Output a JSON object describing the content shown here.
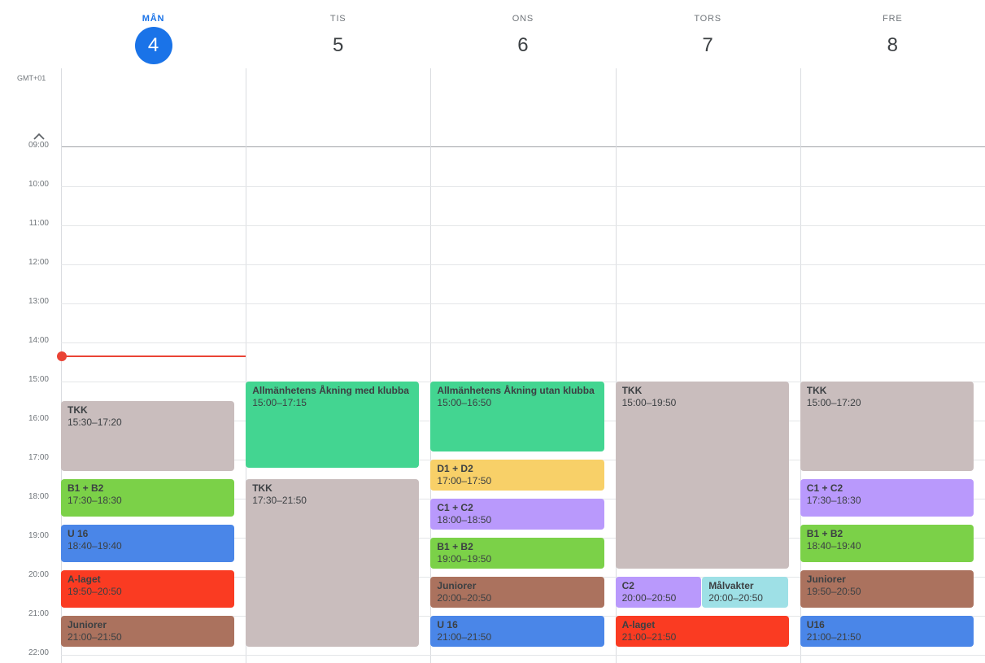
{
  "timezone": "GMT+01",
  "days": [
    {
      "dow": "MÅN",
      "num": "4",
      "today": true
    },
    {
      "dow": "TIS",
      "num": "5",
      "today": false
    },
    {
      "dow": "ONS",
      "num": "6",
      "today": false
    },
    {
      "dow": "TORS",
      "num": "7",
      "today": false
    },
    {
      "dow": "FRE",
      "num": "8",
      "today": false
    }
  ],
  "hours": [
    "09:00",
    "10:00",
    "11:00",
    "12:00",
    "13:00",
    "14:00",
    "15:00",
    "16:00",
    "17:00",
    "18:00",
    "19:00",
    "20:00",
    "21:00",
    "22:00"
  ],
  "current_time": "14:21",
  "colors": {
    "today": "#1a73e8",
    "now_line": "#ea4335",
    "tkk": "#c9bdbd",
    "green_teal": "#43d591",
    "lime": "#7bd148",
    "blue": "#4a86e8",
    "red": "#fa3b22",
    "brown": "#ab725e",
    "yellow": "#f8d068",
    "purple": "#b999fc",
    "cyan": "#9ee0e6"
  },
  "events": [
    {
      "day": 0,
      "title": "TKK",
      "time": "15:30–17:20",
      "start": "15:30",
      "end": "17:20",
      "color": "#c9bdbd"
    },
    {
      "day": 0,
      "title": "B1 + B2",
      "time": "17:30–18:30",
      "start": "17:30",
      "end": "18:30",
      "color": "#7bd148"
    },
    {
      "day": 0,
      "title": "U 16",
      "time": "18:40–19:40",
      "start": "18:40",
      "end": "19:40",
      "color": "#4a86e8"
    },
    {
      "day": 0,
      "title": "A-laget",
      "time": "19:50–20:50",
      "start": "19:50",
      "end": "20:50",
      "color": "#fa3b22"
    },
    {
      "day": 0,
      "title": "Juniorer",
      "time": "21:00–21:50",
      "start": "21:00",
      "end": "21:50",
      "color": "#ab725e"
    },
    {
      "day": 1,
      "title": "Allmänhetens Åkning med klubba",
      "time": "15:00–17:15",
      "start": "15:00",
      "end": "17:15",
      "color": "#43d591"
    },
    {
      "day": 1,
      "title": "TKK",
      "time": "17:30–21:50",
      "start": "17:30",
      "end": "21:50",
      "color": "#c9bdbd"
    },
    {
      "day": 2,
      "title": "Allmänhetens Åkning utan klubba",
      "time": "15:00–16:50",
      "start": "15:00",
      "end": "16:50",
      "color": "#43d591"
    },
    {
      "day": 2,
      "title": "D1 + D2",
      "time": "17:00–17:50",
      "start": "17:00",
      "end": "17:50",
      "color": "#f8d068"
    },
    {
      "day": 2,
      "title": "C1 + C2",
      "time": "18:00–18:50",
      "start": "18:00",
      "end": "18:50",
      "color": "#b999fc"
    },
    {
      "day": 2,
      "title": "B1 + B2",
      "time": "19:00–19:50",
      "start": "19:00",
      "end": "19:50",
      "color": "#7bd148"
    },
    {
      "day": 2,
      "title": "Juniorer",
      "time": "20:00–20:50",
      "start": "20:00",
      "end": "20:50",
      "color": "#ab725e"
    },
    {
      "day": 2,
      "title": "U 16",
      "time": "21:00–21:50",
      "start": "21:00",
      "end": "21:50",
      "color": "#4a86e8"
    },
    {
      "day": 3,
      "title": "TKK",
      "time": "15:00–19:50",
      "start": "15:00",
      "end": "19:50",
      "color": "#c9bdbd"
    },
    {
      "day": 3,
      "title": "C2",
      "time": "20:00–20:50",
      "start": "20:00",
      "end": "20:50",
      "color": "#b999fc",
      "lane": 0,
      "lanes": 2
    },
    {
      "day": 3,
      "title": "Målvakter",
      "time": "20:00–20:50",
      "start": "20:00",
      "end": "20:50",
      "color": "#9ee0e6",
      "lane": 1,
      "lanes": 2
    },
    {
      "day": 3,
      "title": "A-laget",
      "time": "21:00–21:50",
      "start": "21:00",
      "end": "21:50",
      "color": "#fa3b22"
    },
    {
      "day": 4,
      "title": "TKK",
      "time": "15:00–17:20",
      "start": "15:00",
      "end": "17:20",
      "color": "#c9bdbd"
    },
    {
      "day": 4,
      "title": "C1 + C2",
      "time": "17:30–18:30",
      "start": "17:30",
      "end": "18:30",
      "color": "#b999fc"
    },
    {
      "day": 4,
      "title": "B1 + B2",
      "time": "18:40–19:40",
      "start": "18:40",
      "end": "19:40",
      "color": "#7bd148"
    },
    {
      "day": 4,
      "title": "Juniorer",
      "time": "19:50–20:50",
      "start": "19:50",
      "end": "20:50",
      "color": "#ab725e"
    },
    {
      "day": 4,
      "title": "U16",
      "time": "21:00–21:50",
      "start": "21:00",
      "end": "21:50",
      "color": "#4a86e8"
    }
  ]
}
